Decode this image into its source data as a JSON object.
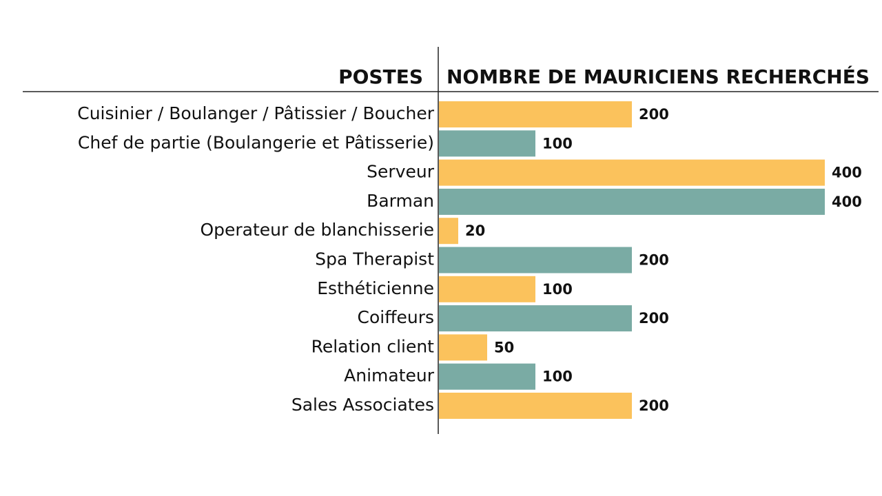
{
  "chart_data": {
    "type": "bar",
    "orientation": "horizontal",
    "category_header": "POSTES",
    "value_header": "NOMBRE DE MAURICIENS RECHERCHÉS",
    "categories": [
      "Cuisinier / Boulanger / Pâtissier / Boucher",
      "Chef de partie (Boulangerie et Pâtisserie)",
      "Serveur",
      "Barman",
      "Operateur de blanchisserie",
      "Spa Therapist",
      "Esthéticienne",
      "Coiffeurs",
      "Relation client",
      "Animateur",
      "Sales Associates"
    ],
    "values": [
      200,
      100,
      400,
      400,
      20,
      200,
      100,
      200,
      50,
      100,
      200
    ],
    "colors": [
      "#fbc25c",
      "#7aaba4"
    ]
  }
}
